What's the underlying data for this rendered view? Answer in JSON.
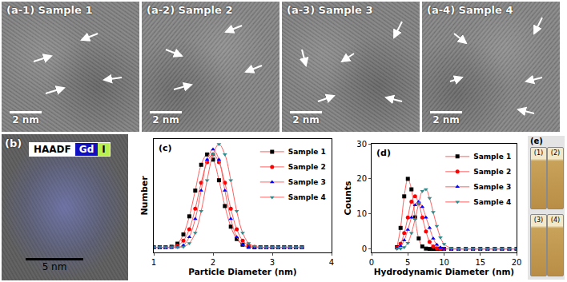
{
  "chart_data": [
    {
      "type": "scatter",
      "title": "(c)",
      "x_label": "Particle Diameter (nm)",
      "y_label": "Number",
      "x": [
        1.0,
        1.1,
        1.2,
        1.3,
        1.4,
        1.5,
        1.6,
        1.7,
        1.8,
        1.9,
        2.0,
        2.1,
        2.2,
        2.3,
        2.4,
        2.5,
        2.6,
        2.7,
        2.8,
        2.9,
        3.0,
        3.1,
        3.2,
        3.3,
        3.4,
        3.5
      ],
      "series": [
        {
          "name": "Sample 1",
          "color": "#000000",
          "marker": "square",
          "line_style": "solid",
          "values": [
            0,
            0,
            0,
            0.1,
            0.7,
            2.5,
            6,
            11,
            16,
            18,
            17,
            13,
            8,
            4,
            1.6,
            0.5,
            0.1,
            0,
            0,
            0,
            0,
            0,
            0,
            0,
            0,
            0
          ]
        },
        {
          "name": "Sample 2",
          "color": "#ff0000",
          "marker": "circle",
          "line_style": "solid",
          "values": [
            0,
            0,
            0,
            0,
            0.3,
            1.3,
            3.5,
            7.5,
            12.5,
            16.5,
            18,
            16.5,
            12.5,
            7.5,
            3.5,
            1.3,
            0.4,
            0.1,
            0,
            0,
            0,
            0,
            0,
            0,
            0,
            0
          ]
        },
        {
          "name": "Sample 3",
          "color": "#0000ff",
          "marker": "triangle-up",
          "line_style": "solid",
          "values": [
            0,
            0,
            0,
            0,
            0,
            0.4,
            2,
            5.5,
            11,
            17,
            19,
            17,
            11,
            5.5,
            2,
            0.5,
            0,
            0,
            0,
            0,
            0,
            0,
            0,
            0,
            0,
            0
          ]
        },
        {
          "name": "Sample 4",
          "color": "#2e8b8b",
          "marker": "triangle-down",
          "line_style": "solid",
          "values": [
            0,
            0,
            0,
            0,
            0,
            0.1,
            0.8,
            2.8,
            7,
            13,
            18,
            20,
            18,
            13,
            7,
            2.8,
            0.8,
            0.2,
            0,
            0,
            0,
            0,
            0,
            0,
            0,
            0
          ]
        }
      ],
      "xlim": [
        1,
        4
      ],
      "xticks": [
        1,
        2,
        3,
        4
      ],
      "ylim": [
        -1,
        21
      ],
      "tick_labels": "x",
      "grid": false,
      "legend": "upper right"
    },
    {
      "type": "scatter",
      "title": "(d)",
      "x_label": "Hydrodynamic Diameter (nm)",
      "y_label": "Counts",
      "x": [
        3.5,
        4,
        4.5,
        5,
        5.5,
        6,
        6.5,
        7,
        7.5,
        8,
        8.5,
        9,
        9.5,
        10,
        11,
        12,
        13,
        14,
        15,
        16,
        17,
        18,
        19,
        20
      ],
      "series": [
        {
          "name": "Sample 1",
          "color": "#000000",
          "marker": "square",
          "line_style": "solid",
          "values": [
            0.5,
            6,
            15,
            20,
            17,
            9,
            3,
            0.7,
            0.1,
            0,
            0,
            0,
            0,
            0,
            0,
            0,
            0,
            0,
            0,
            0,
            0,
            0,
            0,
            0
          ]
        },
        {
          "name": "Sample 2",
          "color": "#ff0000",
          "marker": "circle",
          "line_style": "solid",
          "values": [
            0.3,
            1.5,
            4.5,
            9,
            13.5,
            15,
            13,
            9,
            5,
            2,
            0.7,
            0.2,
            0,
            0,
            0,
            0,
            0,
            0,
            0,
            0,
            0,
            0,
            0,
            0
          ]
        },
        {
          "name": "Sample 3",
          "color": "#0000ff",
          "marker": "triangle-up",
          "line_style": "solid",
          "values": [
            0.2,
            0.8,
            2.5,
            5.5,
            9,
            12.5,
            13.5,
            12,
            9,
            6,
            3,
            1.2,
            0.4,
            0.1,
            0,
            0,
            0,
            0,
            0,
            0,
            0,
            0,
            0,
            0
          ]
        },
        {
          "name": "Sample 4",
          "color": "#2e8b8b",
          "marker": "triangle-down",
          "line_style": "solid",
          "values": [
            0,
            0.1,
            0.5,
            1.7,
            4.5,
            8.5,
            13,
            16.5,
            17,
            14.5,
            10.5,
            6.5,
            3.3,
            1.4,
            0.2,
            0,
            0,
            0,
            0,
            0,
            0,
            0,
            0,
            0
          ]
        }
      ],
      "xlim": [
        0,
        20
      ],
      "xticks": [
        0,
        5,
        10,
        15,
        20
      ],
      "ylim": [
        -1,
        30
      ],
      "yticks": [
        0,
        10,
        20,
        30
      ],
      "grid": false,
      "legend": "upper right"
    }
  ],
  "image_panels": [
    {
      "label": "(a-1) Sample 1",
      "scale_bar": "2 nm"
    },
    {
      "label": "(a-2) Sample 2",
      "scale_bar": "2 nm"
    },
    {
      "label": "(a-3) Sample 3",
      "scale_bar": "2 nm"
    },
    {
      "label": "(a-4) Sample 4",
      "scale_bar": "2 nm"
    }
  ],
  "haadf_panel": {
    "label": "(b)",
    "channels": [
      {
        "name": "HAADF",
        "color": "#ffffff"
      },
      {
        "name": "Gd",
        "color": "#1010c0"
      },
      {
        "name": "I",
        "color": "#b8f050"
      }
    ],
    "scale_bar": "5 nm"
  },
  "photo_panel": {
    "label": "(e)",
    "vials": [
      "(1)",
      "(2)",
      "(3)",
      "(4)"
    ]
  }
}
